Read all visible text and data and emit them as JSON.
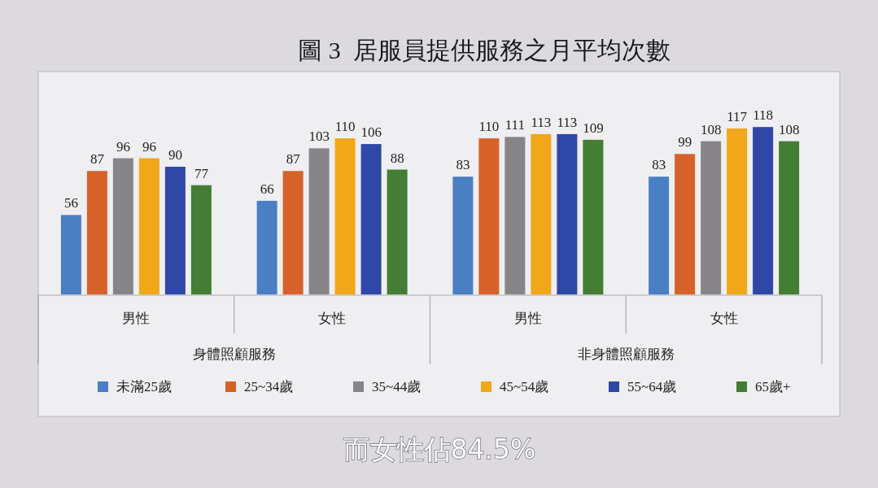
{
  "chart_data": {
    "type": "bar",
    "title": "圖 3  居服員提供服務之月平均次數",
    "categories": [
      "男性",
      "女性",
      "男性",
      "女性"
    ],
    "series": [
      {
        "name": "未滿25歲",
        "color": "#4a7fc4",
        "values": [
          56,
          66,
          83,
          83
        ]
      },
      {
        "name": "25~34歲",
        "color": "#d6622a",
        "values": [
          87,
          87,
          110,
          99
        ]
      },
      {
        "name": "35~44歲",
        "color": "#878587",
        "values": [
          96,
          103,
          111,
          108
        ]
      },
      {
        "name": "45~54歲",
        "color": "#f0a818",
        "values": [
          96,
          110,
          113,
          117
        ]
      },
      {
        "name": "55~64歲",
        "color": "#2f47a6",
        "values": [
          90,
          106,
          113,
          118
        ]
      },
      {
        "name": "65歲+",
        "color": "#447d34",
        "values": [
          77,
          88,
          109,
          108
        ]
      }
    ],
    "data_labels": true,
    "legend": "bottom",
    "annotations": [
      "身體照顧服務",
      "非身體照顧服務",
      "而女性佔84.5%"
    ]
  }
}
